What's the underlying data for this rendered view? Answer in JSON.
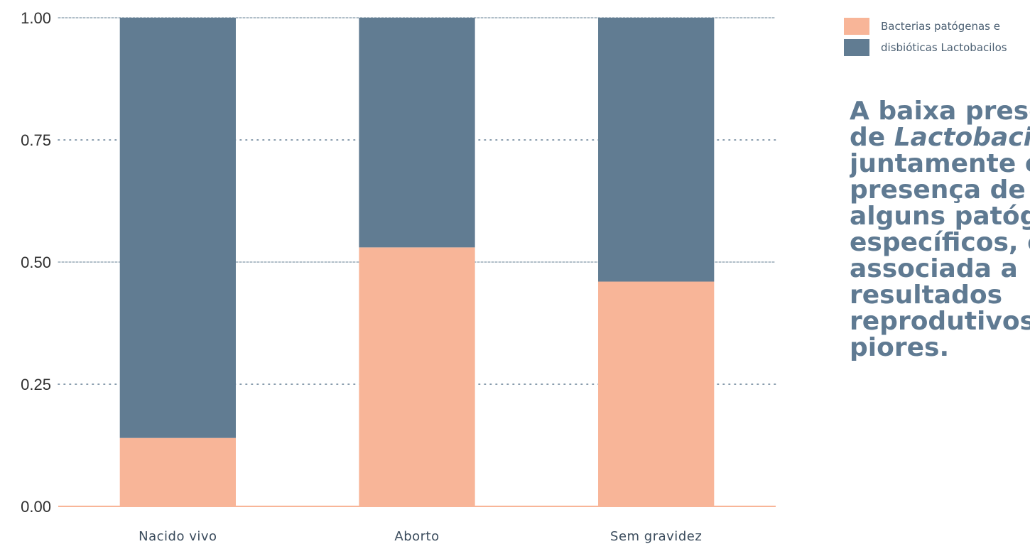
{
  "chart_data": {
    "type": "bar",
    "stacked": true,
    "categories": [
      "Nacido vivo",
      "Aborto",
      "Sem gravidez"
    ],
    "series": [
      {
        "name": "Bacterias patógenas e",
        "color": "#F8B598",
        "values": [
          0.14,
          0.53,
          0.46
        ]
      },
      {
        "name": "disbióticas Lactobacilos",
        "color": "#617C92",
        "values": [
          0.86,
          0.47,
          0.54
        ]
      }
    ],
    "yticks": [
      "0.00",
      "0.25",
      "0.50",
      "0.75",
      "1.00"
    ],
    "ylim": [
      0,
      1
    ],
    "grid": true,
    "legend_position": "top-right",
    "axis_color": "#F8B598",
    "grid_color": "#617C92"
  },
  "annotation": {
    "lines": [
      {
        "text": "A baixa prese"
      },
      {
        "prefix": "de ",
        "italic": "Lactobacil"
      },
      {
        "text": "juntamente co"
      },
      {
        "text": "presença de"
      },
      {
        "text": "alguns patóg"
      },
      {
        "text": "específicos, e"
      },
      {
        "text": "associada a"
      },
      {
        "text": "resultados"
      },
      {
        "text": "reprodutivos"
      },
      {
        "text": "piores."
      }
    ]
  }
}
